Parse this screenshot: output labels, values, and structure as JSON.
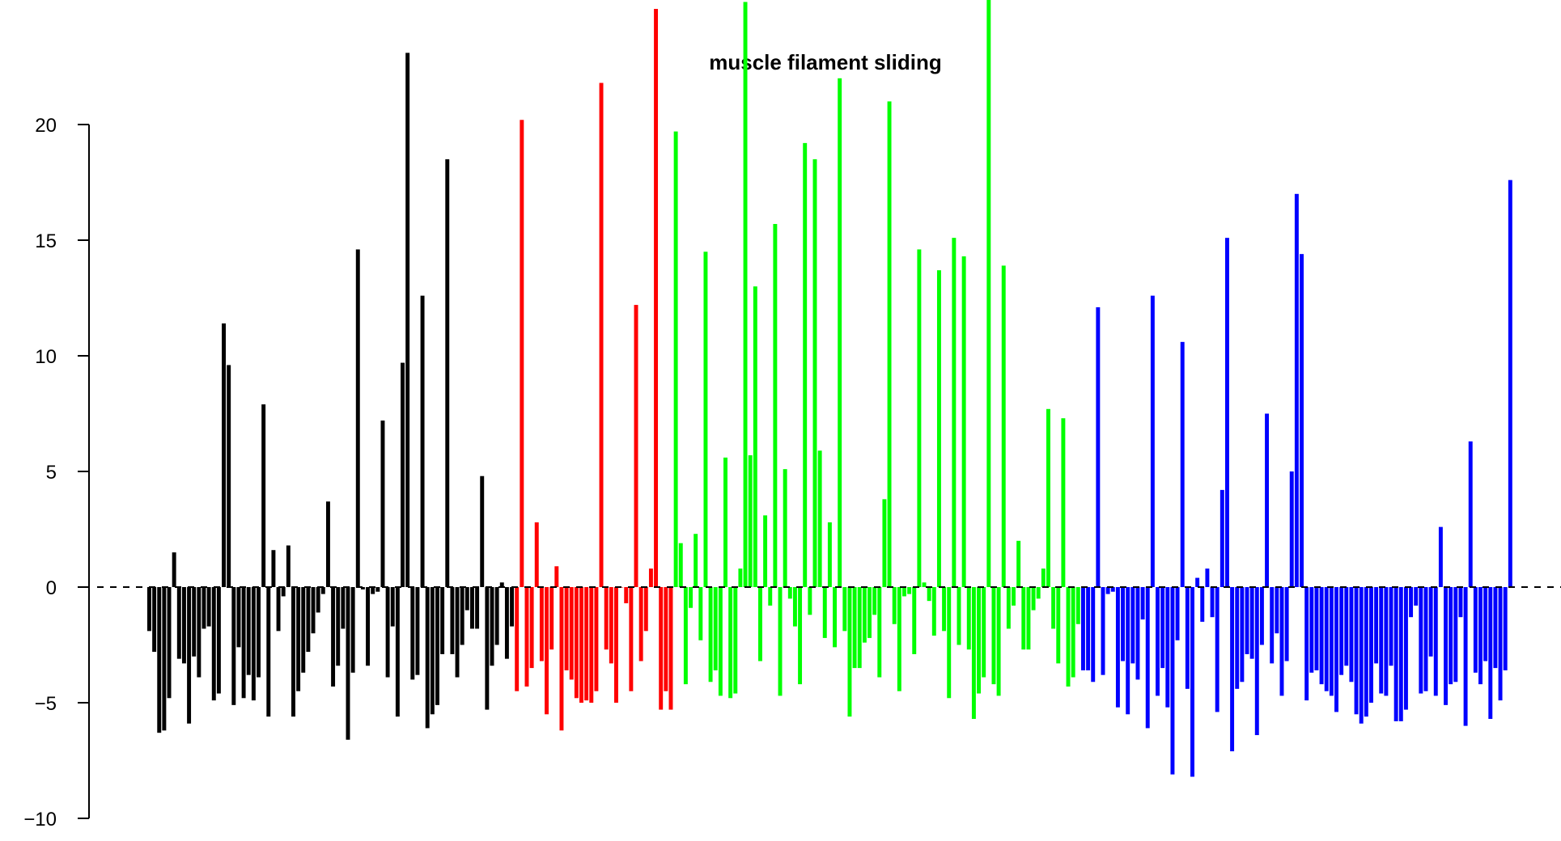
{
  "chart_data": {
    "type": "bar",
    "title": "muscle filament sliding",
    "xlabel": "",
    "ylabel": "",
    "ylim": [
      -10,
      25
    ],
    "yticks": [
      -10,
      -5,
      0,
      5,
      10,
      15,
      20
    ],
    "ytick_labels": [
      "−10",
      "−5",
      "0",
      "5",
      "10",
      "15",
      "20"
    ],
    "reference_line": {
      "y": 0,
      "style": "dashed"
    },
    "grid": false,
    "legend": null,
    "series": [
      {
        "color": "#000000",
        "values": [
          -1.9,
          -2.8,
          -6.3,
          -6.2,
          -4.8,
          1.5,
          -3.1,
          -3.3,
          -5.9,
          -3.0,
          -3.9,
          -1.8,
          -1.7,
          -4.9,
          -4.6,
          11.4,
          9.6,
          -5.1,
          -2.6,
          -4.8,
          -3.8,
          -4.9,
          -3.9,
          7.9,
          -5.6,
          1.6,
          -1.9,
          -0.4,
          1.8,
          -5.6,
          -4.5,
          -3.7,
          -2.8,
          -2.0,
          -1.1,
          -0.3,
          3.7,
          -4.3,
          -3.4,
          -1.8,
          -6.6,
          -3.7,
          14.6,
          -0.1,
          -3.4,
          -0.3,
          -0.2,
          7.2,
          -3.9,
          -1.7,
          -5.6,
          9.7,
          23.1,
          -4.0,
          -3.8,
          12.6,
          -6.1,
          -5.5,
          -5.1,
          -2.9,
          18.5,
          -2.9,
          -3.9,
          -2.5,
          -1.0,
          -1.8,
          -1.8,
          4.8,
          -5.3,
          -3.4,
          -2.5,
          0.2,
          -3.1,
          -1.7
        ]
      },
      {
        "color": "#ff0000",
        "values": [
          -4.5,
          20.2,
          -4.3,
          -3.5,
          2.8,
          -3.2,
          -5.5,
          -2.7,
          0.9,
          -6.2,
          -3.6,
          -4.0,
          -4.8,
          -5.0,
          -4.9,
          -5.0,
          -4.5,
          21.8,
          -2.7,
          -3.3,
          -5.0,
          0.0,
          -0.7,
          -4.5,
          12.2,
          -3.2,
          -1.9,
          0.8,
          25.0,
          -5.3,
          -4.5,
          -5.3
        ]
      },
      {
        "color": "#00ff00",
        "values": [
          19.7,
          1.9,
          -4.2,
          -0.9,
          2.3,
          -2.3,
          14.5,
          -4.1,
          -3.6,
          -4.7,
          5.6,
          -4.8,
          -4.6,
          0.8,
          25.3,
          5.7,
          13.0,
          -3.2,
          3.1,
          -0.8,
          15.7,
          -4.7,
          5.1,
          -0.5,
          -1.7,
          -4.2,
          19.2,
          -1.2,
          18.5,
          5.9,
          -2.2,
          2.8,
          -2.6,
          22.0,
          -1.9,
          -5.6,
          -3.5,
          -3.5,
          -2.4,
          -2.2,
          -1.2,
          -3.9,
          3.8,
          21.0,
          -1.6,
          -4.5,
          -0.4,
          -0.3,
          -2.9,
          14.6,
          0.2,
          -0.6,
          -2.1,
          13.7,
          -1.9,
          -4.8,
          15.1,
          -2.5,
          14.3,
          -2.7,
          -5.7,
          -4.6,
          -3.9,
          25.5,
          -4.2,
          -4.7,
          13.9,
          -1.8,
          -0.8,
          2.0,
          -2.7,
          -2.7,
          -1.0,
          -0.5,
          0.8,
          7.7,
          -1.8,
          -3.3,
          7.3,
          -4.3,
          -3.9,
          -1.6
        ]
      },
      {
        "color": "#0000ff",
        "values": [
          -3.6,
          -3.6,
          -4.1,
          12.1,
          -3.8,
          -0.3,
          -0.2,
          -5.2,
          -3.2,
          -5.5,
          -3.3,
          -4.0,
          -1.4,
          -6.1,
          12.6,
          -4.7,
          -3.5,
          -5.2,
          -8.1,
          -2.3,
          10.6,
          -4.4,
          -8.2,
          0.4,
          -1.5,
          0.8,
          -1.3,
          -5.4,
          4.2,
          15.1,
          -7.1,
          -4.4,
          -4.1,
          -2.9,
          -3.1,
          -6.4,
          -2.5,
          7.5,
          -3.3,
          -2.0,
          -4.7,
          -3.2,
          5.0,
          17.0,
          14.4,
          -4.9,
          -3.7,
          -3.6,
          -4.2,
          -4.5,
          -4.7,
          -5.4,
          -3.8,
          -3.4,
          -4.1,
          -5.5,
          -5.9,
          -5.6,
          -5.0,
          -3.3,
          -4.6,
          -4.7,
          -3.4,
          -5.8,
          -5.8,
          -5.3,
          -1.3,
          -0.8,
          -4.6,
          -4.5,
          -3.0,
          -4.7,
          2.6,
          -5.1,
          -4.2,
          -4.1,
          -1.3,
          -6.0,
          6.3,
          -3.7,
          -4.2,
          -3.2,
          -5.7,
          -3.5,
          -4.9,
          -3.6,
          17.6
        ]
      }
    ]
  }
}
